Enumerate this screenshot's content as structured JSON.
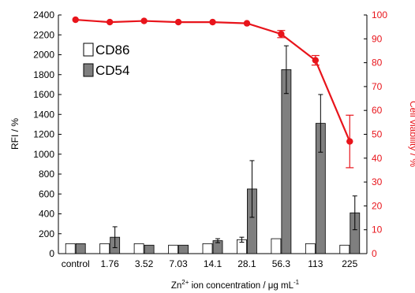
{
  "chart_data": {
    "type": "bar",
    "categories": [
      "control",
      "1.76",
      "3.52",
      "7.03",
      "14.1",
      "28.1",
      "56.3",
      "113",
      "225"
    ],
    "series": [
      {
        "name": "CD86",
        "kind": "bar",
        "axis": "left",
        "values": [
          100,
          100,
          100,
          85,
          100,
          140,
          150,
          100,
          85
        ],
        "errors": [
          0,
          0,
          0,
          0,
          0,
          25,
          0,
          0,
          0
        ]
      },
      {
        "name": "CD54",
        "kind": "bar",
        "axis": "left",
        "values": [
          100,
          165,
          85,
          85,
          130,
          650,
          1850,
          1310,
          410
        ],
        "errors": [
          0,
          105,
          0,
          0,
          20,
          285,
          240,
          290,
          170
        ]
      },
      {
        "name": "",
        "kind": "line",
        "axis": "right",
        "values": [
          98,
          97,
          97.5,
          97,
          97,
          96.5,
          92,
          81,
          47
        ],
        "errors": [
          0,
          0,
          0,
          0,
          0,
          0,
          1.5,
          2,
          11
        ]
      }
    ],
    "xlabel_prefix": "Zn",
    "xlabel_sup1": "2+",
    "xlabel_mid": " ion concentration / μg mL",
    "xlabel_sup2": "-1",
    "ylabel_left": "RFI / %",
    "ylabel_right": "Cell viability / %",
    "ylim_left": [
      0,
      2400
    ],
    "yticks_left": [
      "0",
      "200",
      "400",
      "600",
      "800",
      "1000",
      "1200",
      "1400",
      "1600",
      "1800",
      "2000",
      "2200",
      "2400"
    ],
    "ylim_right": [
      0,
      100
    ],
    "yticks_right": [
      "0",
      "10",
      "20",
      "30",
      "40",
      "50",
      "60",
      "70",
      "80",
      "90",
      "100"
    ],
    "grid": false,
    "legend_position": "top-left",
    "colors": {
      "cd86_fill": "#ffffff",
      "cd54_fill": "#7f7f7f",
      "bar_stroke": "#000000",
      "viability_line": "#e8141b",
      "right_axis_text": "#e8141b"
    }
  }
}
